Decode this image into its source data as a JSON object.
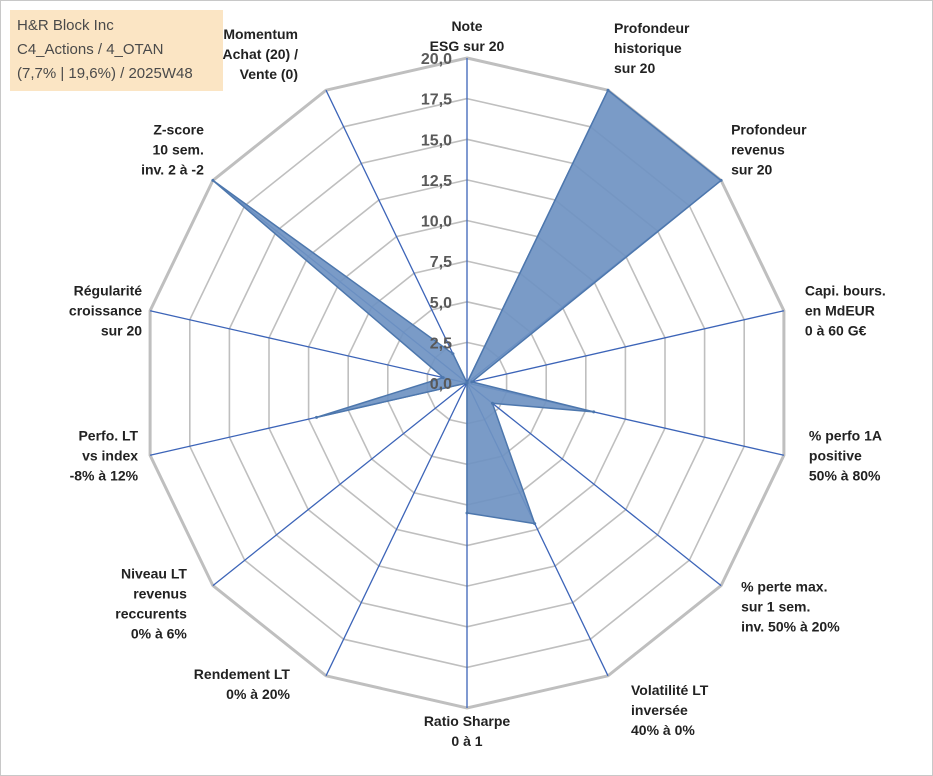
{
  "info_box": {
    "line1": "H&R Block Inc",
    "line2": "C4_Actions / 4_OTAN",
    "line3": "(7,7% | 19,6%) / 2025W48"
  },
  "colors": {
    "fill": "#6f93c2",
    "stroke": "#4d77ad",
    "spoke": "#3c64b8",
    "grid": "#bfbfbf",
    "info_bg": "#fbe5c4"
  },
  "chart_data": {
    "type": "radar",
    "title": "",
    "rmin": 0,
    "rmax": 20,
    "tick_labels": [
      "0,0",
      "2,5",
      "5,0",
      "7,5",
      "10,0",
      "12,5",
      "15,0",
      "17,5",
      "20,0"
    ],
    "axes": [
      {
        "label": [
          "Note",
          "ESG sur 20"
        ],
        "value": 0
      },
      {
        "label": [
          "Profondeur",
          "historique",
          "sur 20"
        ],
        "value": 20
      },
      {
        "label": [
          "Profondeur",
          "revenus",
          "sur 20"
        ],
        "value": 20
      },
      {
        "label": [
          "Capi. bours.",
          "en MdEUR",
          "0 à 60 G€"
        ],
        "value": 0.3
      },
      {
        "label": [
          "% perfo 1A",
          "positive",
          "50% à 80%"
        ],
        "value": 8
      },
      {
        "label": [
          "% perte max.",
          "sur 1 sem.",
          "inv. 50% à 20%"
        ],
        "value": 2
      },
      {
        "label": [
          "Volatilité LT",
          "inversée",
          "40% à 0%"
        ],
        "value": 9.6
      },
      {
        "label": [
          "Ratio Sharpe",
          "0 à 1"
        ],
        "value": 8
      },
      {
        "label": [
          "Rendement LT",
          "0% à 20%"
        ],
        "value": 0
      },
      {
        "label": [
          "Niveau LT",
          "revenus",
          "reccurents",
          "0% à 6%"
        ],
        "value": 0
      },
      {
        "label": [
          "Perfo. LT",
          "vs index",
          "-8% à 12%"
        ],
        "value": 9.5
      },
      {
        "label": [
          "Régularité",
          "croissance",
          "sur 20"
        ],
        "value": 1.5
      },
      {
        "label": [
          "Z-score",
          "10 sem.",
          "inv. 2 à -2"
        ],
        "value": 20
      },
      {
        "label": [
          "Momentum",
          "Achat (20) /",
          "Vente (0)"
        ],
        "value": 2
      }
    ]
  }
}
